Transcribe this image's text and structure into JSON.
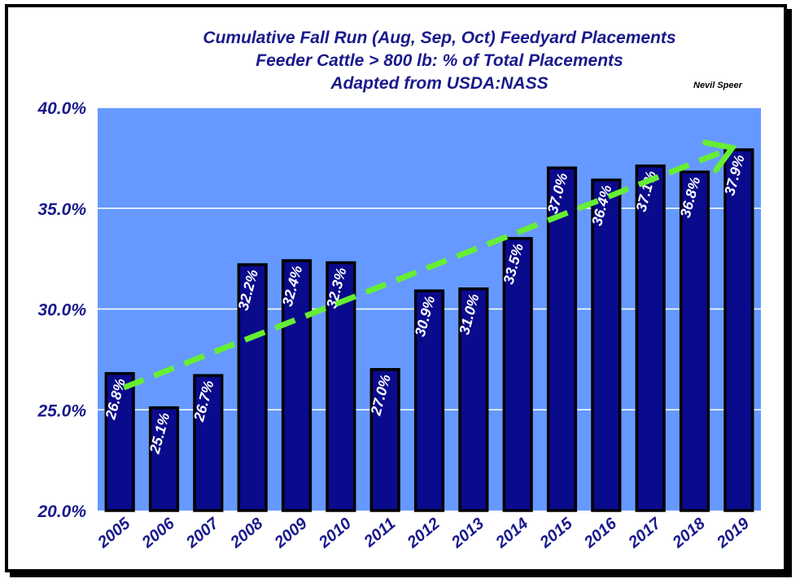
{
  "chart_data": {
    "type": "bar",
    "title_lines": [
      "Cumulative Fall Run (Aug, Sep, Oct) Feedyard Placements",
      "Feeder Cattle > 800 lb: % of Total Placements",
      "Adapted from USDA:NASS"
    ],
    "credit": "Nevil Speer",
    "categories": [
      "2005",
      "2006",
      "2007",
      "2008",
      "2009",
      "2010",
      "2011",
      "2012",
      "2013",
      "2014",
      "2015",
      "2016",
      "2017",
      "2018",
      "2019"
    ],
    "values": [
      26.8,
      25.1,
      26.7,
      32.2,
      32.4,
      32.3,
      27.0,
      30.9,
      31.0,
      33.5,
      37.0,
      36.4,
      37.1,
      36.8,
      37.9
    ],
    "data_labels": [
      "26.8%",
      "25.1%",
      "26.7%",
      "32.2%",
      "32.4%",
      "32.3%",
      "27.0%",
      "30.9%",
      "31.0%",
      "33.5%",
      "37.0%",
      "36.4%",
      "37.1%",
      "36.8%",
      "37.9%"
    ],
    "ylim": [
      20,
      40
    ],
    "yticks": [
      20,
      25,
      30,
      35,
      40
    ],
    "ytick_labels": [
      "20.0%",
      "25.0%",
      "30.0%",
      "35.0%",
      "40.0%"
    ],
    "xlabel": "",
    "ylabel": "",
    "grid": true,
    "trend_arrow": {
      "from": [
        2005,
        26.1
      ],
      "to": [
        2019,
        38.0
      ]
    },
    "colors": {
      "plot_bg": "#6699ff",
      "bar_fill": "#0a0a8c",
      "bar_edge": "#000000",
      "gridline": "#ffffff",
      "trend": "#66ee33",
      "text": "#1a1a8c"
    }
  }
}
